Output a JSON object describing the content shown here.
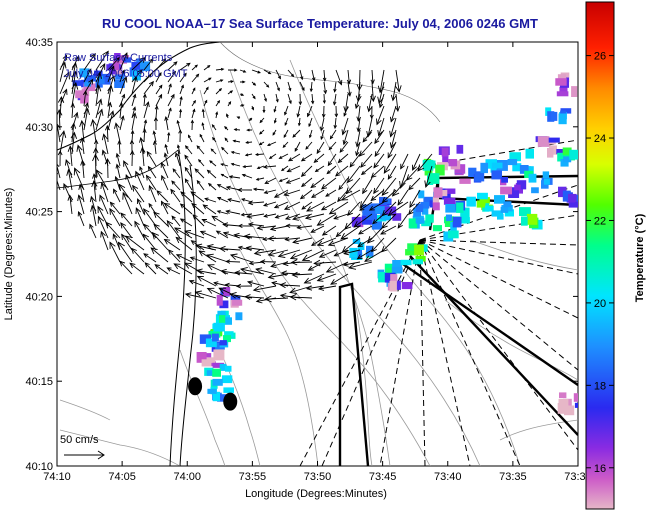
{
  "chart_data": {
    "type": "heatmap",
    "title": "RU COOL  NOAA–17  Sea Surface Temperature:  July 04, 2006 0246 GMT",
    "xlabel": "Longitude (Degrees:Minutes)",
    "ylabel": "Latitude (Degrees:Minutes)",
    "x_ticks": [
      "74:10",
      "74:05",
      "74:00",
      "73:55",
      "73:50",
      "73:45",
      "73:40",
      "73:35",
      "73:30"
    ],
    "y_ticks": [
      "40:35",
      "40:30",
      "40:25",
      "40:20",
      "40:15",
      "40:10"
    ],
    "xlim": [
      -74.1667,
      -73.5
    ],
    "ylim": [
      40.1667,
      40.5833
    ],
    "annotations": {
      "currents_title": "Raw Surface Currents",
      "currents_time": "July 04, 2006 05:00 GMT",
      "scale_label": "50 cm/s"
    },
    "colorbar": {
      "label": "Temperature (°C)",
      "ticks": [
        16,
        18,
        20,
        22,
        24,
        26
      ],
      "range": [
        15,
        27.3
      ]
    },
    "sst_patches": [
      {
        "lon": -74.13,
        "lat": 40.535,
        "temp": 16.5
      },
      {
        "lon": -74.12,
        "lat": 40.545,
        "temp": 19.5
      },
      {
        "lon": -74.1,
        "lat": 40.55,
        "temp": 17.5
      },
      {
        "lon": -74.08,
        "lat": 40.56,
        "temp": 16.2
      },
      {
        "lon": -74.065,
        "lat": 40.558,
        "temp": 19.0
      },
      {
        "lon": -73.95,
        "lat": 40.33,
        "temp": 16.5
      },
      {
        "lon": -73.945,
        "lat": 40.315,
        "temp": 20.5
      },
      {
        "lon": -73.955,
        "lat": 40.3,
        "temp": 21.0
      },
      {
        "lon": -73.965,
        "lat": 40.285,
        "temp": 18.5
      },
      {
        "lon": -73.97,
        "lat": 40.27,
        "temp": 16.0
      },
      {
        "lon": -73.96,
        "lat": 40.255,
        "temp": 20.5
      },
      {
        "lon": -73.955,
        "lat": 40.24,
        "temp": 19.5
      },
      {
        "lon": -73.78,
        "lat": 40.38,
        "temp": 19.5
      },
      {
        "lon": -73.77,
        "lat": 40.4,
        "temp": 17.5
      },
      {
        "lon": -73.755,
        "lat": 40.415,
        "temp": 19.0
      },
      {
        "lon": -73.74,
        "lat": 40.42,
        "temp": 18.0
      },
      {
        "lon": -73.745,
        "lat": 40.355,
        "temp": 20.5
      },
      {
        "lon": -73.73,
        "lat": 40.345,
        "temp": 16.5
      },
      {
        "lon": -73.71,
        "lat": 40.375,
        "temp": 21.5
      },
      {
        "lon": -73.7,
        "lat": 40.41,
        "temp": 20.0
      },
      {
        "lon": -73.69,
        "lat": 40.425,
        "temp": 18.5
      },
      {
        "lon": -73.675,
        "lat": 40.43,
        "temp": 16.0
      },
      {
        "lon": -73.67,
        "lat": 40.4,
        "temp": 21.0
      },
      {
        "lon": -73.655,
        "lat": 40.415,
        "temp": 19.5
      },
      {
        "lon": -73.64,
        "lat": 40.45,
        "temp": 17.0
      },
      {
        "lon": -73.625,
        "lat": 40.425,
        "temp": 21.5
      },
      {
        "lon": -73.61,
        "lat": 40.455,
        "temp": 19.0
      },
      {
        "lon": -73.6,
        "lat": 40.42,
        "temp": 20.5
      },
      {
        "lon": -73.585,
        "lat": 40.44,
        "temp": 16.5
      },
      {
        "lon": -73.57,
        "lat": 40.465,
        "temp": 19.5
      },
      {
        "lon": -73.56,
        "lat": 40.41,
        "temp": 21.5
      },
      {
        "lon": -73.55,
        "lat": 40.445,
        "temp": 20.0
      },
      {
        "lon": -73.535,
        "lat": 40.48,
        "temp": 16.0
      },
      {
        "lon": -73.525,
        "lat": 40.51,
        "temp": 19.0
      },
      {
        "lon": -73.515,
        "lat": 40.54,
        "temp": 16.5
      },
      {
        "lon": -73.51,
        "lat": 40.47,
        "temp": 20.5
      },
      {
        "lon": -73.51,
        "lat": 40.43,
        "temp": 18.0
      },
      {
        "lon": -73.51,
        "lat": 40.23,
        "temp": 16.0
      },
      {
        "lon": -73.66,
        "lat": 40.47,
        "temp": 16.2
      },
      {
        "lon": -73.685,
        "lat": 40.455,
        "temp": 22.0
      }
    ],
    "stations": [
      {
        "lon": -73.99,
        "lat": 40.245
      },
      {
        "lon": -73.945,
        "lat": 40.23
      }
    ]
  }
}
